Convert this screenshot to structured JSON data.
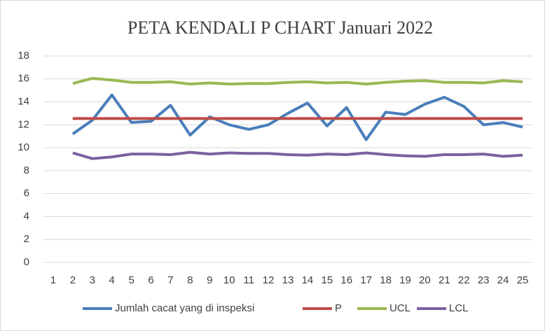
{
  "chart_data": {
    "type": "line",
    "title": "PETA KENDALI P CHART Januari 2022",
    "categories": [
      "1",
      "2",
      "3",
      "4",
      "5",
      "6",
      "7",
      "8",
      "9",
      "10",
      "11",
      "12",
      "13",
      "14",
      "15",
      "16",
      "17",
      "18",
      "19",
      "20",
      "21",
      "22",
      "23",
      "24",
      "25"
    ],
    "series": [
      {
        "name": "Jumlah cacat yang di inspeksi",
        "color": "#4a7ebb",
        "values": [
          null,
          11.2,
          12.4,
          14.6,
          12.2,
          12.3,
          13.7,
          11.1,
          12.7,
          12.0,
          11.6,
          12.0,
          13.0,
          13.9,
          11.9,
          13.5,
          10.7,
          13.1,
          12.9,
          13.8,
          14.4,
          13.6,
          12.0,
          12.2,
          11.8
        ]
      },
      {
        "name": "P",
        "color": "#be4b48",
        "values": [
          null,
          12.55,
          12.55,
          12.55,
          12.55,
          12.55,
          12.55,
          12.55,
          12.55,
          12.55,
          12.55,
          12.55,
          12.55,
          12.55,
          12.55,
          12.55,
          12.55,
          12.55,
          12.55,
          12.55,
          12.55,
          12.55,
          12.55,
          12.55,
          12.55
        ]
      },
      {
        "name": "UCL",
        "color": "#98b954",
        "values": [
          null,
          15.6,
          16.05,
          15.9,
          15.7,
          15.7,
          15.75,
          15.55,
          15.65,
          15.55,
          15.6,
          15.6,
          15.7,
          15.75,
          15.65,
          15.7,
          15.55,
          15.7,
          15.8,
          15.85,
          15.7,
          15.7,
          15.65,
          15.85,
          15.75
        ]
      },
      {
        "name": "LCL",
        "color": "#7d60a0",
        "values": [
          null,
          9.55,
          9.05,
          9.2,
          9.45,
          9.45,
          9.4,
          9.6,
          9.45,
          9.55,
          9.5,
          9.5,
          9.4,
          9.35,
          9.45,
          9.4,
          9.55,
          9.4,
          9.3,
          9.25,
          9.4,
          9.4,
          9.45,
          9.25,
          9.35
        ]
      }
    ],
    "ylim": [
      0,
      18
    ],
    "yticks": [
      0,
      2,
      4,
      6,
      8,
      10,
      12,
      14,
      16,
      18
    ],
    "grid": true,
    "legend": "bottom"
  }
}
